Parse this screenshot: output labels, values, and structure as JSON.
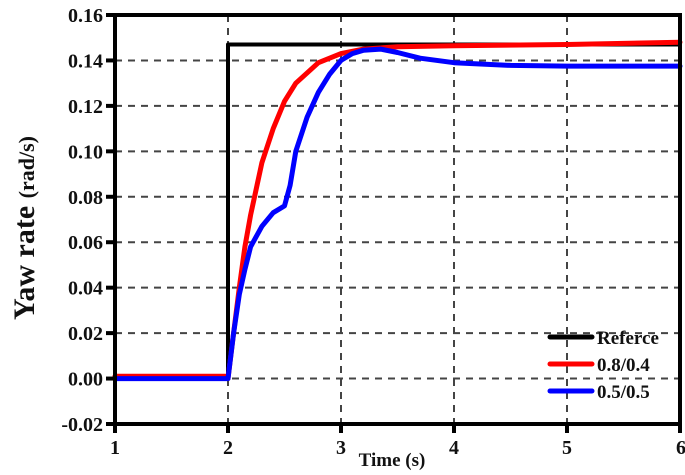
{
  "chart_data": {
    "type": "line",
    "title": "",
    "xlabel": "Time (s)",
    "ylabel": "Yaw rate (rad/s)",
    "xlim": [
      1,
      6
    ],
    "ylim": [
      -0.02,
      0.16
    ],
    "xticks": [
      "1",
      "2",
      "3",
      "4",
      "5",
      "6"
    ],
    "yticks": [
      "-0.02",
      "0.00",
      "0.02",
      "0.04",
      "0.06",
      "0.08",
      "0.10",
      "0.12",
      "0.14",
      "0.16"
    ],
    "grid": true,
    "legend_position": "lower right",
    "series": [
      {
        "name": "Referce",
        "color": "#000000",
        "x": [
          1.0,
          2.0,
          2.0,
          6.0
        ],
        "y": [
          0.0,
          0.0,
          0.147,
          0.147
        ]
      },
      {
        "name": "0.8/0.4",
        "color": "#ff0000",
        "x": [
          1.0,
          1.5,
          1.98,
          2.0,
          2.05,
          2.1,
          2.15,
          2.2,
          2.3,
          2.4,
          2.5,
          2.6,
          2.8,
          3.0,
          3.2,
          3.5,
          4.0,
          5.0,
          6.0
        ],
        "y": [
          0.001,
          0.001,
          0.001,
          0.0,
          0.02,
          0.04,
          0.058,
          0.072,
          0.095,
          0.11,
          0.122,
          0.13,
          0.139,
          0.143,
          0.145,
          0.146,
          0.1465,
          0.147,
          0.148
        ]
      },
      {
        "name": "0.5/0.5",
        "color": "#0000ff",
        "x": [
          1.0,
          1.5,
          2.0,
          2.05,
          2.1,
          2.15,
          2.2,
          2.3,
          2.4,
          2.5,
          2.55,
          2.6,
          2.7,
          2.8,
          2.9,
          3.0,
          3.1,
          3.2,
          3.35,
          3.5,
          3.7,
          4.0,
          4.5,
          5.0,
          6.0
        ],
        "y": [
          0.0,
          0.0,
          0.0,
          0.02,
          0.037,
          0.048,
          0.058,
          0.067,
          0.073,
          0.076,
          0.085,
          0.1,
          0.115,
          0.126,
          0.134,
          0.14,
          0.143,
          0.1445,
          0.145,
          0.1435,
          0.141,
          0.139,
          0.1378,
          0.1375,
          0.1375
        ]
      }
    ]
  },
  "legend": {
    "items": [
      {
        "label": "Referce",
        "color": "#000000"
      },
      {
        "label": "0.8/0.4",
        "color": "#ff0000"
      },
      {
        "label": "0.5/0.5",
        "color": "#0000ff"
      }
    ]
  }
}
